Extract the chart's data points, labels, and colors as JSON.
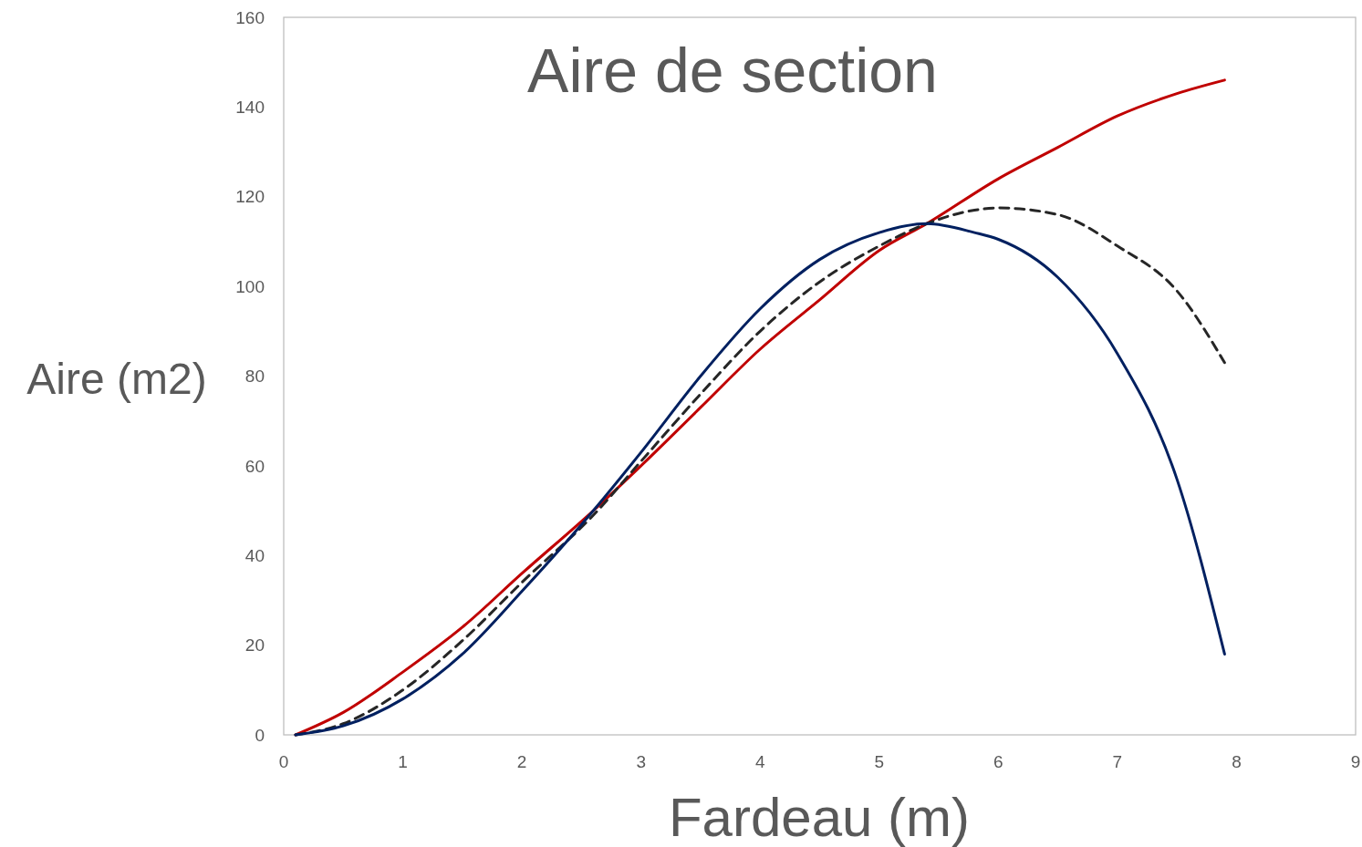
{
  "chart_data": {
    "type": "line",
    "title": "Aire de section",
    "xlabel": "Fardeau (m)",
    "ylabel": "Aire (m2)",
    "xlim": [
      0,
      9
    ],
    "xticks": [
      0,
      1,
      2,
      3,
      4,
      5,
      6,
      7,
      8,
      9
    ],
    "ylim": [
      0,
      160
    ],
    "yticks": [
      0,
      20,
      40,
      60,
      80,
      100,
      120,
      140,
      160
    ],
    "marker": "none",
    "series": [
      {
        "color": "#c00000",
        "line_style": "solid",
        "x": [
          0.1,
          0.5,
          1,
          1.5,
          2,
          2.6,
          3,
          3.5,
          4,
          4.5,
          5,
          5.4,
          6,
          6.5,
          7,
          7.5,
          7.9
        ],
        "values": [
          0,
          5,
          14,
          24,
          36,
          50,
          60,
          73,
          86,
          97,
          108,
          114,
          124,
          131,
          138,
          143,
          146
        ]
      },
      {
        "color": "#262626",
        "line_style": "dashed",
        "x": [
          0.1,
          0.5,
          1,
          1.5,
          2,
          2.6,
          3,
          3.5,
          4,
          4.5,
          5,
          5.4,
          5.8,
          6,
          6.5,
          7,
          7.5,
          7.9
        ],
        "values": [
          0,
          2.5,
          10,
          21,
          34,
          49,
          61,
          76,
          90,
          101,
          109,
          114,
          117,
          117.5,
          116,
          109,
          99,
          83
        ]
      },
      {
        "color": "#002060",
        "line_style": "solid",
        "x": [
          0.1,
          0.5,
          1,
          1.5,
          2,
          2.6,
          3,
          3.5,
          4,
          4.5,
          5,
          5.4,
          5.8,
          6,
          6.5,
          7,
          7.5,
          7.9
        ],
        "values": [
          0,
          2,
          8,
          18,
          32,
          50,
          63,
          80,
          95,
          106,
          112,
          114,
          112,
          110.5,
          102,
          85,
          57,
          18
        ]
      }
    ]
  }
}
